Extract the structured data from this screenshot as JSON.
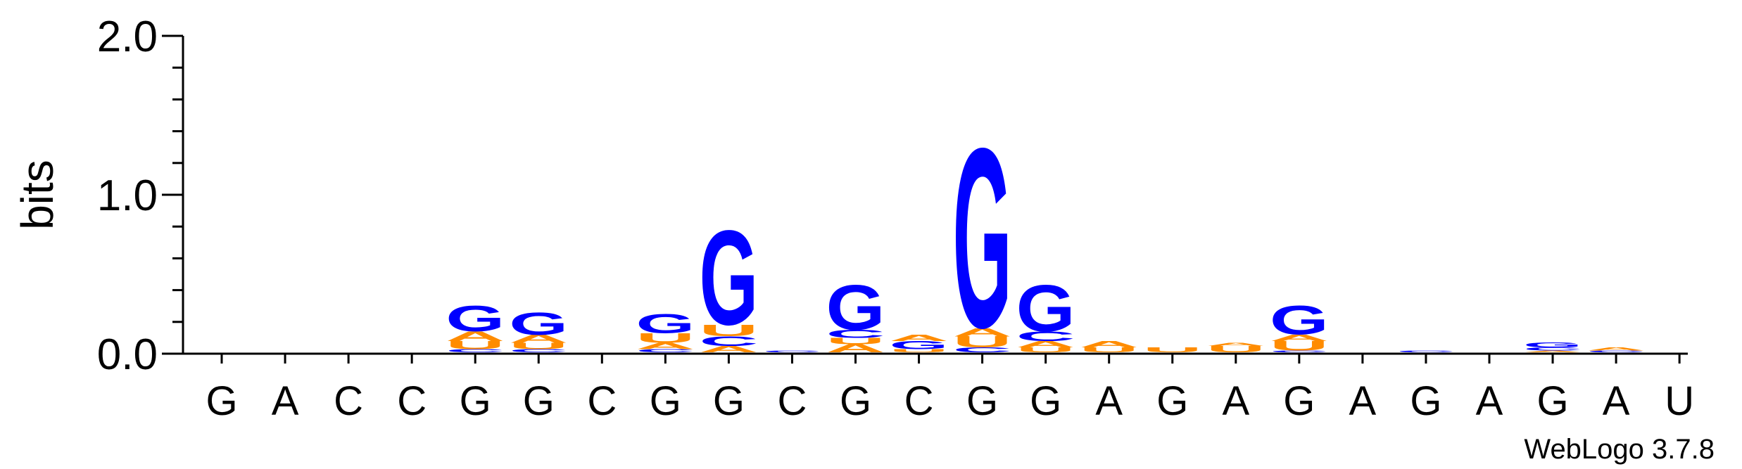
{
  "chart_data": {
    "type": "sequence-logo",
    "title": "",
    "ylabel": "bits",
    "ylim": [
      0,
      2.0
    ],
    "yticks": [
      "0.0",
      "1.0",
      "2.0"
    ],
    "credit": "WebLogo 3.7.8",
    "colors": {
      "G": "#0000FF",
      "A": "#FF8C00",
      "U": "#FF8C00",
      "C": "#0000FF",
      "axis": "#000000"
    },
    "positions": [
      {
        "label": "G",
        "stack": []
      },
      {
        "label": "A",
        "stack": []
      },
      {
        "label": "C",
        "stack": []
      },
      {
        "label": "C",
        "stack": []
      },
      {
        "label": "G",
        "stack": [
          {
            "letter": "C",
            "bits": 0.02
          },
          {
            "letter": "U",
            "bits": 0.05
          },
          {
            "letter": "A",
            "bits": 0.06
          },
          {
            "letter": "G",
            "bits": 0.16
          }
        ]
      },
      {
        "label": "G",
        "stack": [
          {
            "letter": "C",
            "bits": 0.02
          },
          {
            "letter": "U",
            "bits": 0.04
          },
          {
            "letter": "A",
            "bits": 0.05
          },
          {
            "letter": "G",
            "bits": 0.14
          }
        ]
      },
      {
        "label": "C",
        "stack": []
      },
      {
        "label": "G",
        "stack": [
          {
            "letter": "C",
            "bits": 0.02
          },
          {
            "letter": "A",
            "bits": 0.04
          },
          {
            "letter": "U",
            "bits": 0.06
          },
          {
            "letter": "G",
            "bits": 0.12
          }
        ]
      },
      {
        "label": "G",
        "stack": [
          {
            "letter": "A",
            "bits": 0.04
          },
          {
            "letter": "C",
            "bits": 0.06
          },
          {
            "letter": "U",
            "bits": 0.07
          },
          {
            "letter": "G",
            "bits": 0.59
          }
        ]
      },
      {
        "label": "C",
        "stack": [
          {
            "letter": "C",
            "bits": 0.01
          }
        ]
      },
      {
        "label": "G",
        "stack": [
          {
            "letter": "A",
            "bits": 0.05
          },
          {
            "letter": "U",
            "bits": 0.04
          },
          {
            "letter": "C",
            "bits": 0.05
          },
          {
            "letter": "G",
            "bits": 0.28
          }
        ]
      },
      {
        "label": "C",
        "stack": [
          {
            "letter": "U",
            "bits": 0.02
          },
          {
            "letter": "G",
            "bits": 0.05
          },
          {
            "letter": "A",
            "bits": 0.04
          }
        ]
      },
      {
        "label": "G",
        "stack": [
          {
            "letter": "C",
            "bits": 0.03
          },
          {
            "letter": "U",
            "bits": 0.07
          },
          {
            "letter": "A",
            "bits": 0.05
          },
          {
            "letter": "G",
            "bits": 1.12
          }
        ]
      },
      {
        "label": "G",
        "stack": [
          {
            "letter": "U",
            "bits": 0.03
          },
          {
            "letter": "A",
            "bits": 0.04
          },
          {
            "letter": "C",
            "bits": 0.06
          },
          {
            "letter": "G",
            "bits": 0.29
          }
        ]
      },
      {
        "label": "A",
        "stack": [
          {
            "letter": "U",
            "bits": 0.03
          },
          {
            "letter": "A",
            "bits": 0.04
          }
        ]
      },
      {
        "label": "G",
        "stack": [
          {
            "letter": "U",
            "bits": 0.03
          }
        ]
      },
      {
        "label": "A",
        "stack": [
          {
            "letter": "U",
            "bits": 0.04
          },
          {
            "letter": "A",
            "bits": 0.02
          }
        ]
      },
      {
        "label": "G",
        "stack": [
          {
            "letter": "C",
            "bits": 0.01
          },
          {
            "letter": "U",
            "bits": 0.06
          },
          {
            "letter": "A",
            "bits": 0.04
          },
          {
            "letter": "G",
            "bits": 0.18
          }
        ]
      },
      {
        "label": "A",
        "stack": []
      },
      {
        "label": "G",
        "stack": [
          {
            "letter": "C",
            "bits": 0.01
          }
        ]
      },
      {
        "label": "A",
        "stack": []
      },
      {
        "label": "G",
        "stack": [
          {
            "letter": "A",
            "bits": 0.01
          },
          {
            "letter": "C",
            "bits": 0.02
          },
          {
            "letter": "G",
            "bits": 0.03
          }
        ]
      },
      {
        "label": "A",
        "stack": [
          {
            "letter": "C",
            "bits": 0.01
          },
          {
            "letter": "A",
            "bits": 0.02
          }
        ]
      },
      {
        "label": "U",
        "stack": []
      }
    ]
  }
}
